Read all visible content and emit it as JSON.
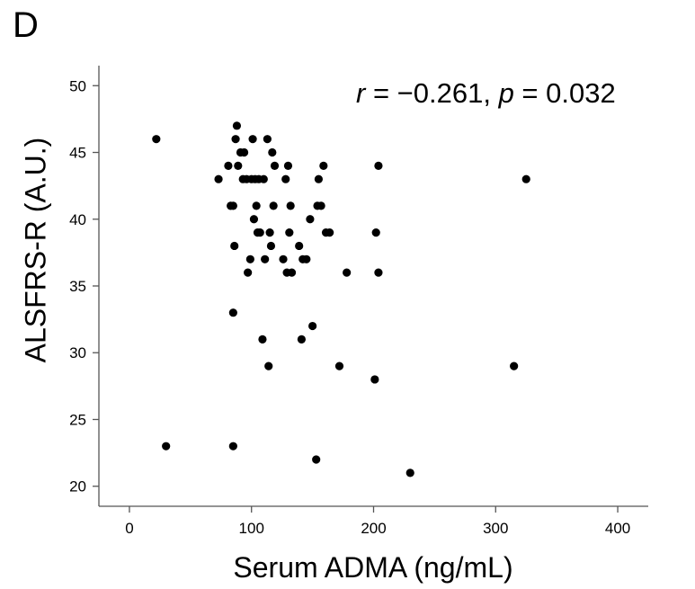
{
  "panel_label": "D",
  "annotation": {
    "r_symbol": "r",
    "r_text": " = −0.261, ",
    "p_symbol": "p",
    "p_text": " = 0.032"
  },
  "chart_data": {
    "type": "scatter",
    "xlabel": "Serum ADMA (ng/mL)",
    "ylabel": "ALSFRS-R (A.U.)",
    "xlim": [
      -25,
      425
    ],
    "ylim": [
      18.5,
      51.5
    ],
    "xticks": [
      0,
      100,
      200,
      300,
      400
    ],
    "yticks": [
      20,
      25,
      30,
      35,
      40,
      45,
      50
    ],
    "grid": false,
    "point_color": "#000000",
    "points": [
      {
        "x": 22,
        "y": 46
      },
      {
        "x": 30,
        "y": 23
      },
      {
        "x": 73,
        "y": 43
      },
      {
        "x": 81,
        "y": 44
      },
      {
        "x": 83,
        "y": 41
      },
      {
        "x": 85,
        "y": 41
      },
      {
        "x": 85,
        "y": 33
      },
      {
        "x": 85,
        "y": 23
      },
      {
        "x": 86,
        "y": 38
      },
      {
        "x": 87,
        "y": 46
      },
      {
        "x": 88,
        "y": 47
      },
      {
        "x": 89,
        "y": 44
      },
      {
        "x": 91,
        "y": 45
      },
      {
        "x": 93,
        "y": 43
      },
      {
        "x": 94,
        "y": 45
      },
      {
        "x": 96,
        "y": 43
      },
      {
        "x": 97,
        "y": 36
      },
      {
        "x": 99,
        "y": 37
      },
      {
        "x": 100,
        "y": 43
      },
      {
        "x": 101,
        "y": 46
      },
      {
        "x": 102,
        "y": 40
      },
      {
        "x": 103,
        "y": 43
      },
      {
        "x": 104,
        "y": 41
      },
      {
        "x": 105,
        "y": 39
      },
      {
        "x": 106,
        "y": 43
      },
      {
        "x": 107,
        "y": 39
      },
      {
        "x": 109,
        "y": 31
      },
      {
        "x": 110,
        "y": 43
      },
      {
        "x": 111,
        "y": 37
      },
      {
        "x": 113,
        "y": 46
      },
      {
        "x": 114,
        "y": 29
      },
      {
        "x": 115,
        "y": 39
      },
      {
        "x": 116,
        "y": 38
      },
      {
        "x": 117,
        "y": 45
      },
      {
        "x": 118,
        "y": 41
      },
      {
        "x": 119,
        "y": 44
      },
      {
        "x": 126,
        "y": 37
      },
      {
        "x": 128,
        "y": 43
      },
      {
        "x": 129,
        "y": 36
      },
      {
        "x": 130,
        "y": 44
      },
      {
        "x": 131,
        "y": 39
      },
      {
        "x": 132,
        "y": 41
      },
      {
        "x": 133,
        "y": 36
      },
      {
        "x": 139,
        "y": 38
      },
      {
        "x": 141,
        "y": 31
      },
      {
        "x": 142,
        "y": 37
      },
      {
        "x": 145,
        "y": 37
      },
      {
        "x": 148,
        "y": 40
      },
      {
        "x": 150,
        "y": 32
      },
      {
        "x": 153,
        "y": 22
      },
      {
        "x": 154,
        "y": 41
      },
      {
        "x": 155,
        "y": 43
      },
      {
        "x": 157,
        "y": 41
      },
      {
        "x": 159,
        "y": 44
      },
      {
        "x": 161,
        "y": 39
      },
      {
        "x": 164,
        "y": 39
      },
      {
        "x": 172,
        "y": 29
      },
      {
        "x": 178,
        "y": 36
      },
      {
        "x": 201,
        "y": 28
      },
      {
        "x": 202,
        "y": 39
      },
      {
        "x": 204,
        "y": 44
      },
      {
        "x": 204,
        "y": 36
      },
      {
        "x": 230,
        "y": 21
      },
      {
        "x": 315,
        "y": 29
      },
      {
        "x": 325,
        "y": 43
      }
    ]
  }
}
